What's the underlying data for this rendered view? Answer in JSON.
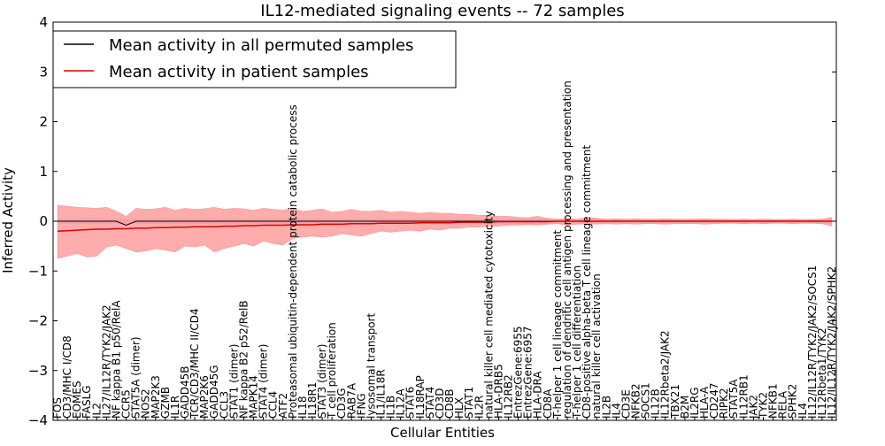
{
  "chart_data": {
    "type": "line",
    "title": "IL12-mediated signaling events -- 72 samples",
    "xlabel": "Cellular Entities",
    "ylabel": "Inferred Activity",
    "ylim": [
      -4,
      4
    ],
    "yticks": [
      -4,
      -3,
      -2,
      -1,
      0,
      1,
      2,
      3,
      4
    ],
    "legend_position": "upper-left",
    "colors": {
      "permuted": "#000000",
      "patient": "#e00000",
      "band": "#ff9090",
      "band_permuted": "#b0b0c8"
    },
    "categories": [
      "FOS",
      "CD3/MHC I/CD8",
      "EOMES",
      "FASLG",
      "IL2",
      "IL27/IL12R/TYK2/JAK2",
      "NF kappa B1 p50/RelA",
      "CCR5",
      "STAT5A (dimer)",
      "NOS2",
      "MAP2K3",
      "GZMB",
      "IL1R",
      "GADD45B",
      "TCR/CD3/MHC II/CD4",
      "MAP2K6",
      "GADD45G",
      "CCL3",
      "STAT1 (dimer)",
      "NF kappa B2 p52/RelB",
      "MAPK14",
      "STAT4 (dimer)",
      "CCL4",
      "ATF2",
      "Proteasomal ubiquitin-dependent protein catabolic process",
      "IL18",
      "IL18R1",
      "STAT3 (dimer)",
      "T cell proliferation",
      "CD3G",
      "RAB7A",
      "IFNG",
      "lysosomal transport",
      "IL1/IL18R",
      "IL1B",
      "IL12A",
      "STAT6",
      "IL18RAP",
      "STAT4",
      "CD3D",
      "CD8B",
      "HLX",
      "STAT1",
      "IL2R",
      "natural killer cell mediated cytotoxicity",
      "HLA-DRB5",
      "IL12RB2",
      "EntrezGene:6955",
      "EntrezGene:6957",
      "HLA-DRA",
      "CD8A",
      "T-helper 1 cell lineage commitment",
      "regulation of dendritic cell antigen processing and presentation",
      "T-helper 1 cell differentiation",
      "CD8-positive alpha-beta T cell lineage commitment",
      "natural killer cell activation",
      "IL2B",
      "IL4",
      "CD3E",
      "NFKB2",
      "SOCS1",
      "IL12B",
      "IL12Rbeta2/JAK2",
      "TBX21",
      "B2M",
      "IL2RG",
      "HLA-A",
      "CD247",
      "RIPK2",
      "STAT5A",
      "IL12RB1",
      "JAK2",
      "TYK2",
      "NFKB1",
      "RELA",
      "SPHK2",
      "IL4",
      "IL12/IL12R/TYK2/JAK2/SOCS1",
      "IL12Rbeta1/TYK2",
      "IL12/IL12R/TYK2/JAK2/SPHK2"
    ],
    "series": [
      {
        "name": "Mean activity in all permuted samples",
        "color": "#000000",
        "values": [
          0.0,
          0.0,
          0.0,
          0.0,
          0.0,
          0.0,
          0.0,
          -0.08,
          0.0,
          0.0,
          0.0,
          0.0,
          0.0,
          0.0,
          0.0,
          0.0,
          0.0,
          0.0,
          0.0,
          0.0,
          0.0,
          0.0,
          0.0,
          0.0,
          0.0,
          0.0,
          0.0,
          0.0,
          0.0,
          0.0,
          0.0,
          0.0,
          0.0,
          0.0,
          0.0,
          0.0,
          0.0,
          0.0,
          0.0,
          0.0,
          0.0,
          0.0,
          0.0,
          0.0,
          0.0,
          0.0,
          0.0,
          0.0,
          0.0,
          0.0,
          0.0,
          0.0,
          0.0,
          0.0,
          0.0,
          0.0,
          0.0,
          0.0,
          0.0,
          0.0,
          0.0,
          0.0,
          0.0,
          0.0,
          0.0,
          0.0,
          0.0,
          0.0,
          0.0,
          0.0,
          0.0,
          0.0,
          0.0,
          0.0,
          0.0,
          0.0,
          0.0,
          0.0,
          0.0,
          0.0
        ]
      },
      {
        "name": "Mean activity in patient samples",
        "color": "#e00000",
        "values": [
          -0.2,
          -0.19,
          -0.18,
          -0.17,
          -0.16,
          -0.16,
          -0.15,
          -0.15,
          -0.14,
          -0.14,
          -0.13,
          -0.13,
          -0.12,
          -0.12,
          -0.11,
          -0.11,
          -0.11,
          -0.1,
          -0.1,
          -0.09,
          -0.09,
          -0.08,
          -0.08,
          -0.08,
          -0.07,
          -0.07,
          -0.07,
          -0.06,
          -0.06,
          -0.06,
          -0.05,
          -0.05,
          -0.05,
          -0.04,
          -0.04,
          -0.04,
          -0.04,
          -0.03,
          -0.03,
          -0.03,
          -0.03,
          -0.02,
          -0.02,
          -0.02,
          -0.02,
          -0.01,
          -0.01,
          -0.01,
          -0.01,
          -0.01,
          -0.01,
          0.0,
          0.0,
          0.0,
          0.0,
          0.0,
          0.0,
          0.0,
          0.0,
          0.0,
          0.0,
          0.0,
          0.0,
          0.0,
          0.0,
          0.0,
          0.0,
          0.0,
          0.0,
          0.0,
          0.0,
          0.0,
          0.0,
          0.0,
          0.0,
          0.0,
          0.0,
          0.0,
          0.0,
          0.0
        ]
      }
    ],
    "band_upper": [
      0.32,
      0.3,
      0.28,
      0.27,
      0.26,
      0.28,
      0.2,
      0.1,
      0.26,
      0.24,
      0.25,
      0.28,
      0.22,
      0.26,
      0.24,
      0.25,
      0.28,
      0.24,
      0.26,
      0.25,
      0.22,
      0.26,
      0.24,
      0.22,
      0.26,
      0.2,
      0.22,
      0.25,
      0.18,
      0.2,
      0.24,
      0.2,
      0.2,
      0.22,
      0.18,
      0.2,
      0.18,
      0.16,
      0.18,
      0.16,
      0.16,
      0.14,
      0.14,
      0.12,
      0.12,
      0.1,
      0.1,
      0.08,
      0.07,
      0.1,
      0.06,
      0.04,
      0.06,
      0.04,
      0.08,
      0.06,
      0.04,
      0.05,
      0.04,
      0.05,
      0.04,
      0.04,
      0.05,
      0.04,
      0.04,
      0.04,
      0.05,
      0.04,
      0.04,
      0.03,
      0.04,
      0.03,
      0.04,
      0.03,
      0.03,
      0.04,
      0.03,
      0.03,
      0.04,
      0.08
    ],
    "band_lower": [
      -0.75,
      -0.7,
      -0.65,
      -0.72,
      -0.7,
      -0.52,
      -0.48,
      -0.55,
      -0.62,
      -0.6,
      -0.55,
      -0.58,
      -0.62,
      -0.5,
      -0.52,
      -0.48,
      -0.62,
      -0.55,
      -0.5,
      -0.45,
      -0.5,
      -0.4,
      -0.45,
      -0.48,
      -0.35,
      -0.32,
      -0.3,
      -0.32,
      -0.3,
      -0.25,
      -0.28,
      -0.3,
      -0.25,
      -0.2,
      -0.22,
      -0.2,
      -0.18,
      -0.2,
      -0.16,
      -0.18,
      -0.14,
      -0.14,
      -0.12,
      -0.12,
      -0.1,
      -0.1,
      -0.08,
      -0.08,
      -0.07,
      -0.08,
      -0.06,
      -0.05,
      -0.08,
      -0.06,
      -0.06,
      -0.06,
      -0.05,
      -0.06,
      -0.05,
      -0.06,
      -0.05,
      -0.05,
      -0.06,
      -0.05,
      -0.05,
      -0.05,
      -0.06,
      -0.05,
      -0.04,
      -0.04,
      -0.05,
      -0.04,
      -0.05,
      -0.04,
      -0.04,
      -0.05,
      -0.04,
      -0.04,
      -0.05,
      -0.1
    ]
  }
}
